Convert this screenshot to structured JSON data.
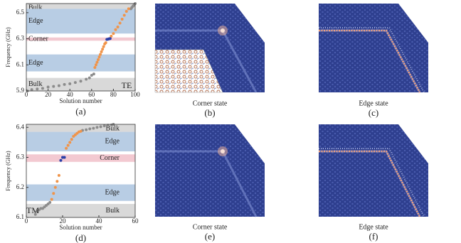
{
  "chart_data": [
    {
      "type": "scatter",
      "ylabel": "Frequency (GHz)",
      "xlabel": "Solution number",
      "panel": "(a)",
      "mode": "TE",
      "xlim": [
        0,
        100
      ],
      "xticks": [
        0,
        20,
        40,
        60,
        80,
        100
      ],
      "ylim": [
        5.9,
        6.57
      ],
      "yticks": [
        5.9,
        6.1,
        6.3,
        6.5
      ],
      "bands": [
        {
          "label": "Bulk",
          "from": 6.53,
          "to": 6.57,
          "color": "#d9d9d9"
        },
        {
          "label": "Edge",
          "from": 6.34,
          "to": 6.53,
          "color": "#b8cde4"
        },
        {
          "label": "Corner",
          "from": 6.285,
          "to": 6.31,
          "color": "#f3c9d1"
        },
        {
          "label": "Edge",
          "from": 6.05,
          "to": 6.18,
          "color": "#b8cde4"
        },
        {
          "label": "Bulk",
          "from": 5.9,
          "to": 6.0,
          "color": "#d9d9d9"
        }
      ],
      "series": [
        {
          "color": "#8c8c8c",
          "x": [
            1,
            5,
            10,
            15,
            20,
            25,
            30,
            35,
            40,
            45,
            50,
            55,
            58,
            60,
            62,
            96,
            97,
            98,
            99,
            100
          ],
          "values": [
            5.9,
            5.91,
            5.915,
            5.92,
            5.93,
            5.935,
            5.94,
            5.95,
            5.955,
            5.965,
            5.975,
            5.99,
            6.0,
            6.02,
            6.03,
            6.53,
            6.54,
            6.55,
            6.56,
            6.57
          ]
        },
        {
          "color": "#f0944a",
          "x": [
            63,
            64,
            65,
            66,
            67,
            68,
            69,
            70,
            71,
            72,
            73,
            78,
            80,
            82,
            84,
            86,
            88,
            90,
            92,
            94
          ],
          "values": [
            6.08,
            6.1,
            6.12,
            6.14,
            6.16,
            6.18,
            6.2,
            6.22,
            6.24,
            6.26,
            6.27,
            6.32,
            6.34,
            6.37,
            6.39,
            6.42,
            6.45,
            6.48,
            6.51,
            6.53
          ]
        },
        {
          "color": "#2b3fa8",
          "x": [
            74,
            75,
            76,
            77
          ],
          "values": [
            6.295,
            6.297,
            6.3,
            6.302
          ]
        }
      ]
    },
    {
      "type": "scatter",
      "ylabel": "Frequency (GHz)",
      "xlabel": "Solution number",
      "panel": "(d)",
      "mode": "TM",
      "xlim": [
        0,
        60
      ],
      "xticks": [
        0,
        20,
        40,
        60
      ],
      "ylim": [
        6.1,
        6.41
      ],
      "yticks": [
        6.1,
        6.2,
        6.3,
        6.4
      ],
      "bands": [
        {
          "label": "Bulk",
          "from": 6.385,
          "to": 6.41,
          "color": "#d9d9d9"
        },
        {
          "label": "Edge",
          "from": 6.32,
          "to": 6.385,
          "color": "#b8cde4"
        },
        {
          "label": "Corner",
          "from": 6.285,
          "to": 6.31,
          "color": "#f3c9d1"
        },
        {
          "label": "Edge",
          "from": 6.155,
          "to": 6.21,
          "color": "#b8cde4"
        },
        {
          "label": "Bulk",
          "from": 6.1,
          "to": 6.145,
          "color": "#d9d9d9"
        }
      ],
      "series": [
        {
          "color": "#8c8c8c",
          "x": [
            5,
            6,
            7,
            8,
            9,
            10,
            11,
            12,
            13,
            31,
            33,
            35,
            37,
            39,
            41,
            43,
            45,
            47,
            48
          ],
          "values": [
            6.11,
            6.12,
            6.125,
            6.13,
            6.13,
            6.135,
            6.14,
            6.145,
            6.15,
            6.39,
            6.392,
            6.395,
            6.397,
            6.4,
            6.402,
            6.405,
            6.407,
            6.408,
            6.41
          ]
        },
        {
          "color": "#f0944a",
          "x": [
            14,
            15,
            16,
            17,
            18,
            22,
            23,
            24,
            25,
            26,
            27,
            28,
            29,
            30
          ],
          "values": [
            6.16,
            6.18,
            6.2,
            6.22,
            6.24,
            6.33,
            6.34,
            6.35,
            6.36,
            6.37,
            6.375,
            6.38,
            6.385,
            6.387
          ]
        },
        {
          "color": "#2b3fa8",
          "x": [
            19,
            20,
            21
          ],
          "values": [
            6.29,
            6.3,
            6.3
          ]
        }
      ]
    }
  ],
  "panels": [
    {
      "label": "(b)",
      "caption": "Corner state"
    },
    {
      "label": "(c)",
      "caption": "Edge state"
    },
    {
      "label": "(e)",
      "caption": "Corner state"
    },
    {
      "label": "(f)",
      "caption": "Edge state"
    }
  ]
}
